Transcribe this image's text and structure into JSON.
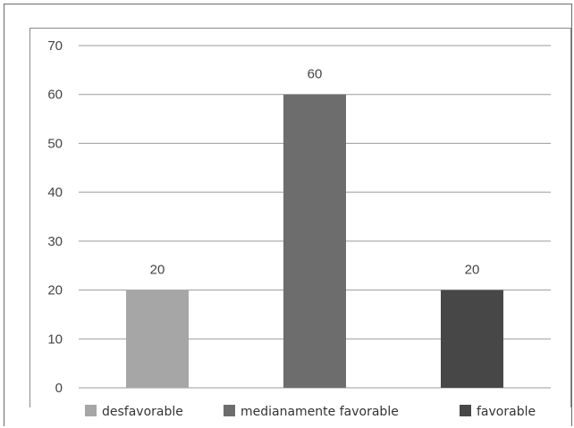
{
  "chart_data": {
    "type": "bar",
    "categories": [
      "desfavorable",
      "medianamente favorable",
      "favorable"
    ],
    "values": [
      20,
      60,
      20
    ],
    "colors": [
      "#a6a6a6",
      "#6d6d6d",
      "#474747"
    ],
    "ylim": [
      0,
      70
    ],
    "yticks": [
      "0",
      "10",
      "20",
      "30",
      "40",
      "50",
      "60",
      "70"
    ],
    "data_labels": [
      "20",
      "60",
      "20"
    ],
    "grid": true,
    "legend_position": "bottom",
    "legend": [
      {
        "label": "desfavorable",
        "color": "#a6a6a6"
      },
      {
        "label": "medianamente favorable",
        "color": "#6d6d6d"
      },
      {
        "label": "favorable",
        "color": "#474747"
      }
    ]
  }
}
